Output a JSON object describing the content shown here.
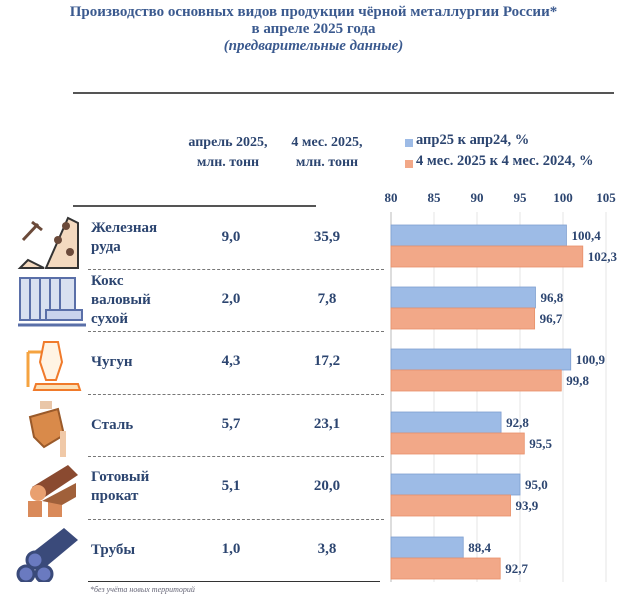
{
  "title": {
    "line1": "Производство основных видов продукции чёрной металлургии России*",
    "line2": "в апреле 2025 года",
    "line3": "(предварительные данные)"
  },
  "columns": {
    "c1": [
      "апрель 2025,",
      "млн. тонн"
    ],
    "c2": [
      "4 мес. 2025,",
      "млн. тонн"
    ]
  },
  "rows": [
    {
      "label": [
        "Железная",
        "руда"
      ],
      "apr": "9,0",
      "m4": "35,9",
      "icon": "iron-ore-mining-icon"
    },
    {
      "label": [
        "Кокс",
        "валовый",
        "сухой"
      ],
      "apr": "2,0",
      "m4": "7,8",
      "icon": "coke-plant-icon"
    },
    {
      "label": [
        "Чугун"
      ],
      "apr": "4,3",
      "m4": "17,2",
      "icon": "blast-furnace-icon"
    },
    {
      "label": [
        "Сталь"
      ],
      "apr": "5,7",
      "m4": "23,1",
      "icon": "steel-ladle-icon"
    },
    {
      "label": [
        "Готовый",
        "прокат"
      ],
      "apr": "5,1",
      "m4": "20,0",
      "icon": "rolled-steel-icon"
    },
    {
      "label": [
        "Трубы"
      ],
      "apr": "1,0",
      "m4": "3,8",
      "icon": "pipes-icon"
    }
  ],
  "footnote": "*без учёта новых территорий",
  "chart_data": {
    "type": "bar",
    "orientation": "horizontal",
    "categories": [
      "Железная руда",
      "Кокс валовый сухой",
      "Чугун",
      "Сталь",
      "Готовый прокат",
      "Трубы"
    ],
    "series": [
      {
        "name": "апр25 к апр24, %",
        "values": [
          100.4,
          96.8,
          100.9,
          92.8,
          95.0,
          88.4
        ],
        "labels": [
          "100,4",
          "96,8",
          "100,9",
          "92,8",
          "95,0",
          "88,4"
        ],
        "color": "#9dbbe6"
      },
      {
        "name": "4 мес. 2025 к 4 мес. 2024, %",
        "values": [
          102.3,
          96.7,
          99.8,
          95.5,
          93.9,
          92.7
        ],
        "labels": [
          "102,3",
          "96,7",
          "99,8",
          "95,5",
          "93,9",
          "92,7"
        ],
        "color": "#f2a888"
      }
    ],
    "xlim": [
      80,
      105
    ],
    "ticks": [
      "80",
      "85",
      "90",
      "95",
      "100",
      "105"
    ],
    "tick_values": [
      80,
      85,
      90,
      95,
      100,
      105
    ],
    "grid": true,
    "legend": "top"
  }
}
